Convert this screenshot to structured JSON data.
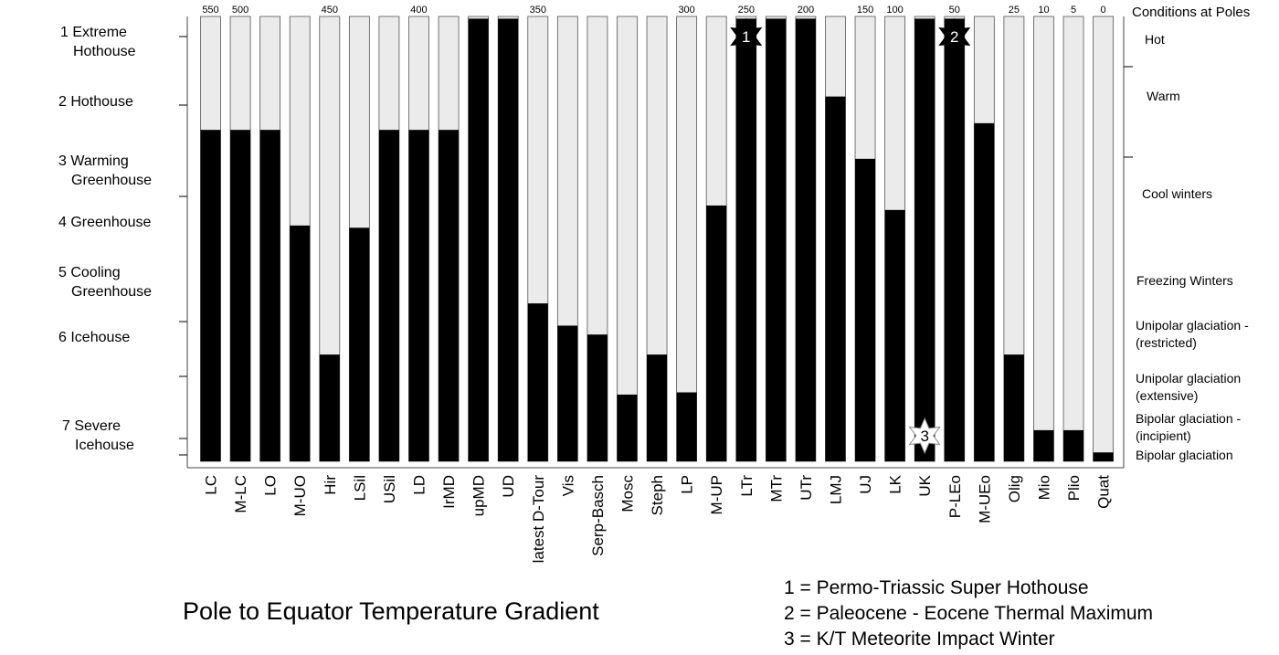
{
  "chart_data": {
    "type": "bar",
    "title": "Pole to Equator Temperature Gradient",
    "stacked_appearance": "black bar fraction on light-gray column",
    "categories": [
      "LC",
      "M-LC",
      "LO",
      "M-UO",
      "Hir",
      "LSil",
      "USil",
      "LD",
      "IrMD",
      "upMD",
      "UD",
      "latest D-Tour",
      "Vis",
      "Serp-Basch",
      "Mosc",
      "Steph",
      "LP",
      "M-UP",
      "LTr",
      "MTr",
      "UTr",
      "LMJ",
      "UJ",
      "LK",
      "UK",
      "P-LEo",
      "M-UEo",
      "Olig",
      "Mio",
      "Plio",
      "Quat"
    ],
    "values": [
      0.745,
      0.745,
      0.745,
      0.53,
      0.24,
      0.525,
      0.745,
      0.745,
      0.745,
      0.995,
      0.995,
      0.355,
      0.305,
      0.285,
      0.15,
      0.24,
      0.155,
      0.575,
      0.995,
      0.995,
      0.995,
      0.82,
      0.68,
      0.565,
      0.995,
      0.995,
      0.76,
      0.24,
      0.07,
      0.07,
      0.02
    ],
    "value_scale": "fraction of column height (bottom = Severe Icehouse/Bipolar glaciation, top = Extreme Hothouse)",
    "top_axis_ticks": [
      "550",
      "500",
      "450",
      "400",
      "350",
      "300",
      "250",
      "200",
      "150",
      "100",
      "50",
      "25",
      "10",
      "5",
      "0"
    ],
    "top_axis_tick_under_category": [
      "LC",
      "M-LC",
      "Hir",
      "LD",
      "latest D-Tour",
      "LP",
      "LTr",
      "UTr",
      "UJ",
      "LK",
      "P-LEo",
      "Olig",
      "Mio",
      "Plio",
      "Quat"
    ],
    "left_classes": [
      {
        "lines": [
          "1 Extreme",
          "Hothouse"
        ]
      },
      {
        "lines": [
          "2  Hothouse"
        ]
      },
      {
        "lines": [
          "3 Warming",
          "Greenhouse"
        ]
      },
      {
        "lines": [
          "4  Greenhouse"
        ]
      },
      {
        "lines": [
          "5  Cooling",
          "Greenhouse"
        ]
      },
      {
        "lines": [
          "6  Icehouse"
        ]
      },
      {
        "lines": [
          "7  Severe",
          "Icehouse"
        ]
      }
    ],
    "right_header": "Conditions at Poles",
    "right_conditions": [
      {
        "lines": [
          "Hot"
        ]
      },
      {
        "lines": [
          "Warm"
        ]
      },
      {
        "lines": [
          "Cool winters"
        ]
      },
      {
        "lines": [
          "Freezing Winters"
        ]
      },
      {
        "lines": [
          "Unipolar glaciation -",
          "(restricted)"
        ]
      },
      {
        "lines": [
          "Unipolar glaciation",
          "(extensive)"
        ]
      },
      {
        "lines": [
          "Bipolar glaciation -",
          "(incipient)"
        ]
      },
      {
        "lines": [
          "Bipolar glaciation"
        ]
      }
    ],
    "event_markers": [
      {
        "label": "1",
        "category": "LTr",
        "position": "top",
        "style": "black star"
      },
      {
        "label": "2",
        "category": "P-LEo",
        "position": "top",
        "style": "black star"
      },
      {
        "label": "3",
        "category": "UK",
        "position": "bottom",
        "style": "white star"
      }
    ],
    "notes": [
      "1 = Permo-Triassic Super Hothouse",
      "2 = Paleocene - Eocene Thermal Maximum",
      "3 = K/T Meteorite Impact Winter"
    ],
    "colors": {
      "bar": "#000000",
      "column": "#ebebeb",
      "column_border": "#555555"
    }
  }
}
